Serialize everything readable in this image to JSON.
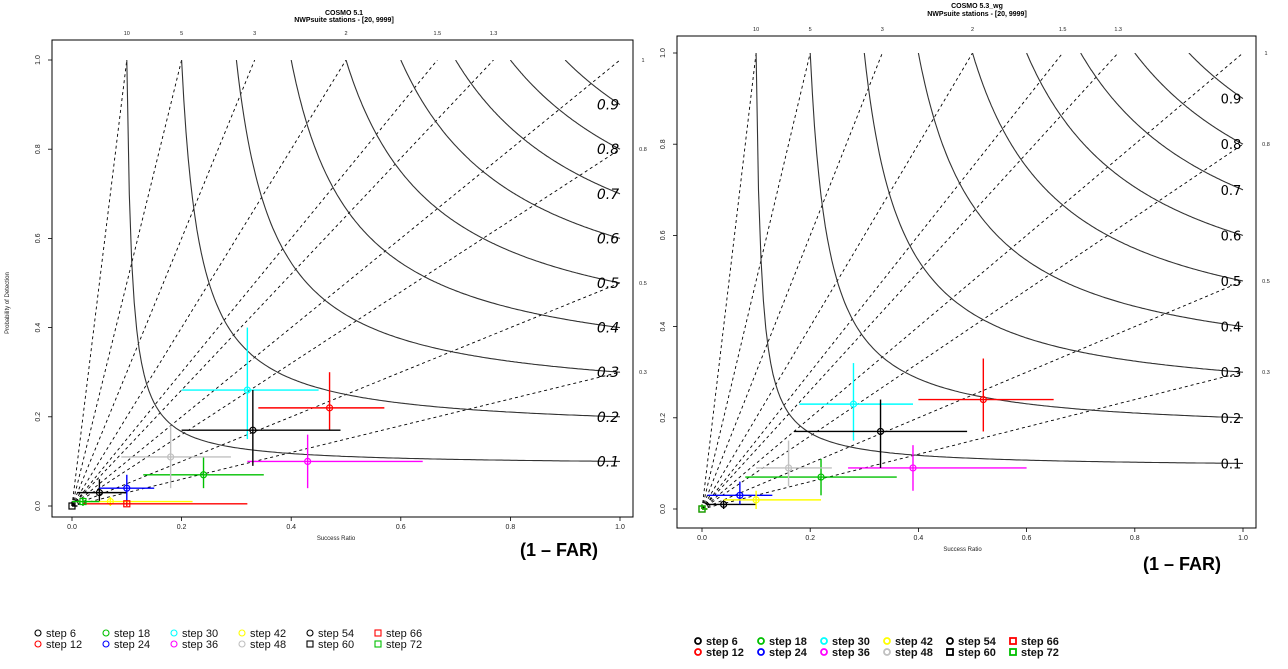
{
  "chart_data": [
    {
      "type": "scatter",
      "title": "COSMO 5.1",
      "subtitle": "NWPsuite stations -  [20, 9999]",
      "xlabel": "Success Ratio",
      "ylabel": "Probability of Detection",
      "xlim": [
        0,
        1
      ],
      "ylim": [
        0,
        1
      ],
      "xticks": [
        "0.0",
        "0.2",
        "0.4",
        "0.6",
        "0.8",
        "1.0"
      ],
      "yticks": [
        "0.0",
        "0.2",
        "0.4",
        "0.6",
        "0.8",
        "1.0"
      ],
      "bias_labels": [
        "10",
        "5",
        "3",
        "2",
        "1.5",
        "1.3",
        "1",
        "0.8",
        "0.5",
        "0.3"
      ],
      "csi_labels": [
        "0.9",
        "0.8",
        "0.7",
        "0.6",
        "0.5",
        "0.4",
        "0.3",
        "0.2",
        "0.1"
      ],
      "far_label": "(1 – FAR)",
      "series": [
        {
          "name": "step 6",
          "color": "#000000",
          "marker": "circle",
          "x": 0.05,
          "y": 0.03,
          "xerr": [
            0.01,
            0.1
          ],
          "yerr": [
            0.01,
            0.06
          ]
        },
        {
          "name": "step 12",
          "color": "#ff0000",
          "marker": "circle",
          "x": 0.47,
          "y": 0.22,
          "xerr": [
            0.34,
            0.57
          ],
          "yerr": [
            0.17,
            0.3
          ]
        },
        {
          "name": "step 18",
          "color": "#00c000",
          "marker": "circle",
          "x": 0.24,
          "y": 0.07,
          "xerr": [
            0.13,
            0.35
          ],
          "yerr": [
            0.04,
            0.11
          ]
        },
        {
          "name": "step 24",
          "color": "#0000ff",
          "marker": "circle",
          "x": 0.1,
          "y": 0.04,
          "xerr": [
            0.05,
            0.15
          ],
          "yerr": [
            0.01,
            0.07
          ]
        },
        {
          "name": "step 30",
          "color": "#00ffff",
          "marker": "circle",
          "x": 0.32,
          "y": 0.26,
          "xerr": [
            0.2,
            0.45
          ],
          "yerr": [
            0.15,
            0.4
          ]
        },
        {
          "name": "step 36",
          "color": "#ff00ff",
          "marker": "circle",
          "x": 0.43,
          "y": 0.1,
          "xerr": [
            0.32,
            0.64
          ],
          "yerr": [
            0.04,
            0.16
          ]
        },
        {
          "name": "step 42",
          "color": "#ffff00",
          "marker": "circle",
          "x": 0.07,
          "y": 0.01,
          "xerr": [
            0.01,
            0.22
          ],
          "yerr": [
            0.0,
            0.02
          ]
        },
        {
          "name": "step 48",
          "color": "#c0c0c0",
          "marker": "circle",
          "x": 0.18,
          "y": 0.11,
          "xerr": [
            0.09,
            0.29
          ],
          "yerr": [
            0.04,
            0.18
          ]
        },
        {
          "name": "step 54",
          "color": "#000000",
          "marker": "circle",
          "x": 0.33,
          "y": 0.17,
          "xerr": [
            0.2,
            0.49
          ],
          "yerr": [
            0.09,
            0.26
          ]
        },
        {
          "name": "step 60",
          "color": "#000000",
          "marker": "square",
          "x": 0.0,
          "y": 0.0,
          "xerr": [
            0.0,
            0.01
          ],
          "yerr": [
            0.0,
            0.01
          ]
        },
        {
          "name": "step 66",
          "color": "#ff0000",
          "marker": "square",
          "x": 0.1,
          "y": 0.005,
          "xerr": [
            0.02,
            0.32
          ],
          "yerr": [
            0.0,
            0.01
          ]
        },
        {
          "name": "step 72",
          "color": "#00c000",
          "marker": "square",
          "x": 0.02,
          "y": 0.01,
          "xerr": [
            0.0,
            0.05
          ],
          "yerr": [
            0.0,
            0.02
          ]
        }
      ]
    },
    {
      "type": "scatter",
      "title": "COSMO 5.3_wg",
      "subtitle": "NWPsuite stations -  [20, 9999]",
      "xlabel": "Success Ratio",
      "ylabel": "",
      "xlim": [
        0,
        1
      ],
      "ylim": [
        0,
        1
      ],
      "xticks": [
        "0.0",
        "0.2",
        "0.4",
        "0.6",
        "0.8",
        "1.0"
      ],
      "yticks": [
        "0.0",
        "0.2",
        "0.4",
        "0.6",
        "0.8",
        "1.0"
      ],
      "bias_labels": [
        "10",
        "5",
        "3",
        "2",
        "1.5",
        "1.3",
        "1",
        "0.8",
        "0.5",
        "0.3"
      ],
      "csi_labels": [
        "0.9",
        "0.8",
        "0.7",
        "0.6",
        "0.5",
        "0.4",
        "0.3",
        "0.2",
        "0.1"
      ],
      "far_label": "(1 – FAR)",
      "series": [
        {
          "name": "step 6",
          "color": "#000000",
          "marker": "circle",
          "x": 0.04,
          "y": 0.01,
          "xerr": [
            0.01,
            0.1
          ],
          "yerr": [
            0.0,
            0.02
          ]
        },
        {
          "name": "step 12",
          "color": "#ff0000",
          "marker": "circle",
          "x": 0.52,
          "y": 0.24,
          "xerr": [
            0.4,
            0.65
          ],
          "yerr": [
            0.17,
            0.33
          ]
        },
        {
          "name": "step 18",
          "color": "#00c000",
          "marker": "circle",
          "x": 0.22,
          "y": 0.07,
          "xerr": [
            0.08,
            0.36
          ],
          "yerr": [
            0.03,
            0.11
          ]
        },
        {
          "name": "step 24",
          "color": "#0000ff",
          "marker": "circle",
          "x": 0.07,
          "y": 0.03,
          "xerr": [
            0.01,
            0.13
          ],
          "yerr": [
            0.01,
            0.06
          ]
        },
        {
          "name": "step 30",
          "color": "#00ffff",
          "marker": "circle",
          "x": 0.28,
          "y": 0.23,
          "xerr": [
            0.18,
            0.39
          ],
          "yerr": [
            0.15,
            0.32
          ]
        },
        {
          "name": "step 36",
          "color": "#ff00ff",
          "marker": "circle",
          "x": 0.39,
          "y": 0.09,
          "xerr": [
            0.27,
            0.6
          ],
          "yerr": [
            0.04,
            0.14
          ]
        },
        {
          "name": "step 42",
          "color": "#ffff00",
          "marker": "circle",
          "x": 0.1,
          "y": 0.02,
          "xerr": [
            0.04,
            0.22
          ],
          "yerr": [
            0.0,
            0.04
          ]
        },
        {
          "name": "step 48",
          "color": "#c0c0c0",
          "marker": "circle",
          "x": 0.16,
          "y": 0.09,
          "xerr": [
            0.1,
            0.24
          ],
          "yerr": [
            0.05,
            0.15
          ]
        },
        {
          "name": "step 54",
          "color": "#000000",
          "marker": "circle",
          "x": 0.33,
          "y": 0.17,
          "xerr": [
            0.17,
            0.49
          ],
          "yerr": [
            0.09,
            0.24
          ]
        },
        {
          "name": "step 60",
          "color": "#000000",
          "marker": "square",
          "x": 0.0,
          "y": 0.0,
          "xerr": [
            0.0,
            0.01
          ],
          "yerr": [
            0.0,
            0.01
          ]
        },
        {
          "name": "step 66",
          "color": "#ff0000",
          "marker": "square",
          "x": 0.0,
          "y": 0.0,
          "xerr": [
            0.0,
            0.01
          ],
          "yerr": [
            0.0,
            0.01
          ]
        },
        {
          "name": "step 72",
          "color": "#00c000",
          "marker": "square",
          "x": 0.0,
          "y": 0.0,
          "xerr": [
            0.0,
            0.01
          ],
          "yerr": [
            0.0,
            0.01
          ]
        }
      ]
    }
  ]
}
